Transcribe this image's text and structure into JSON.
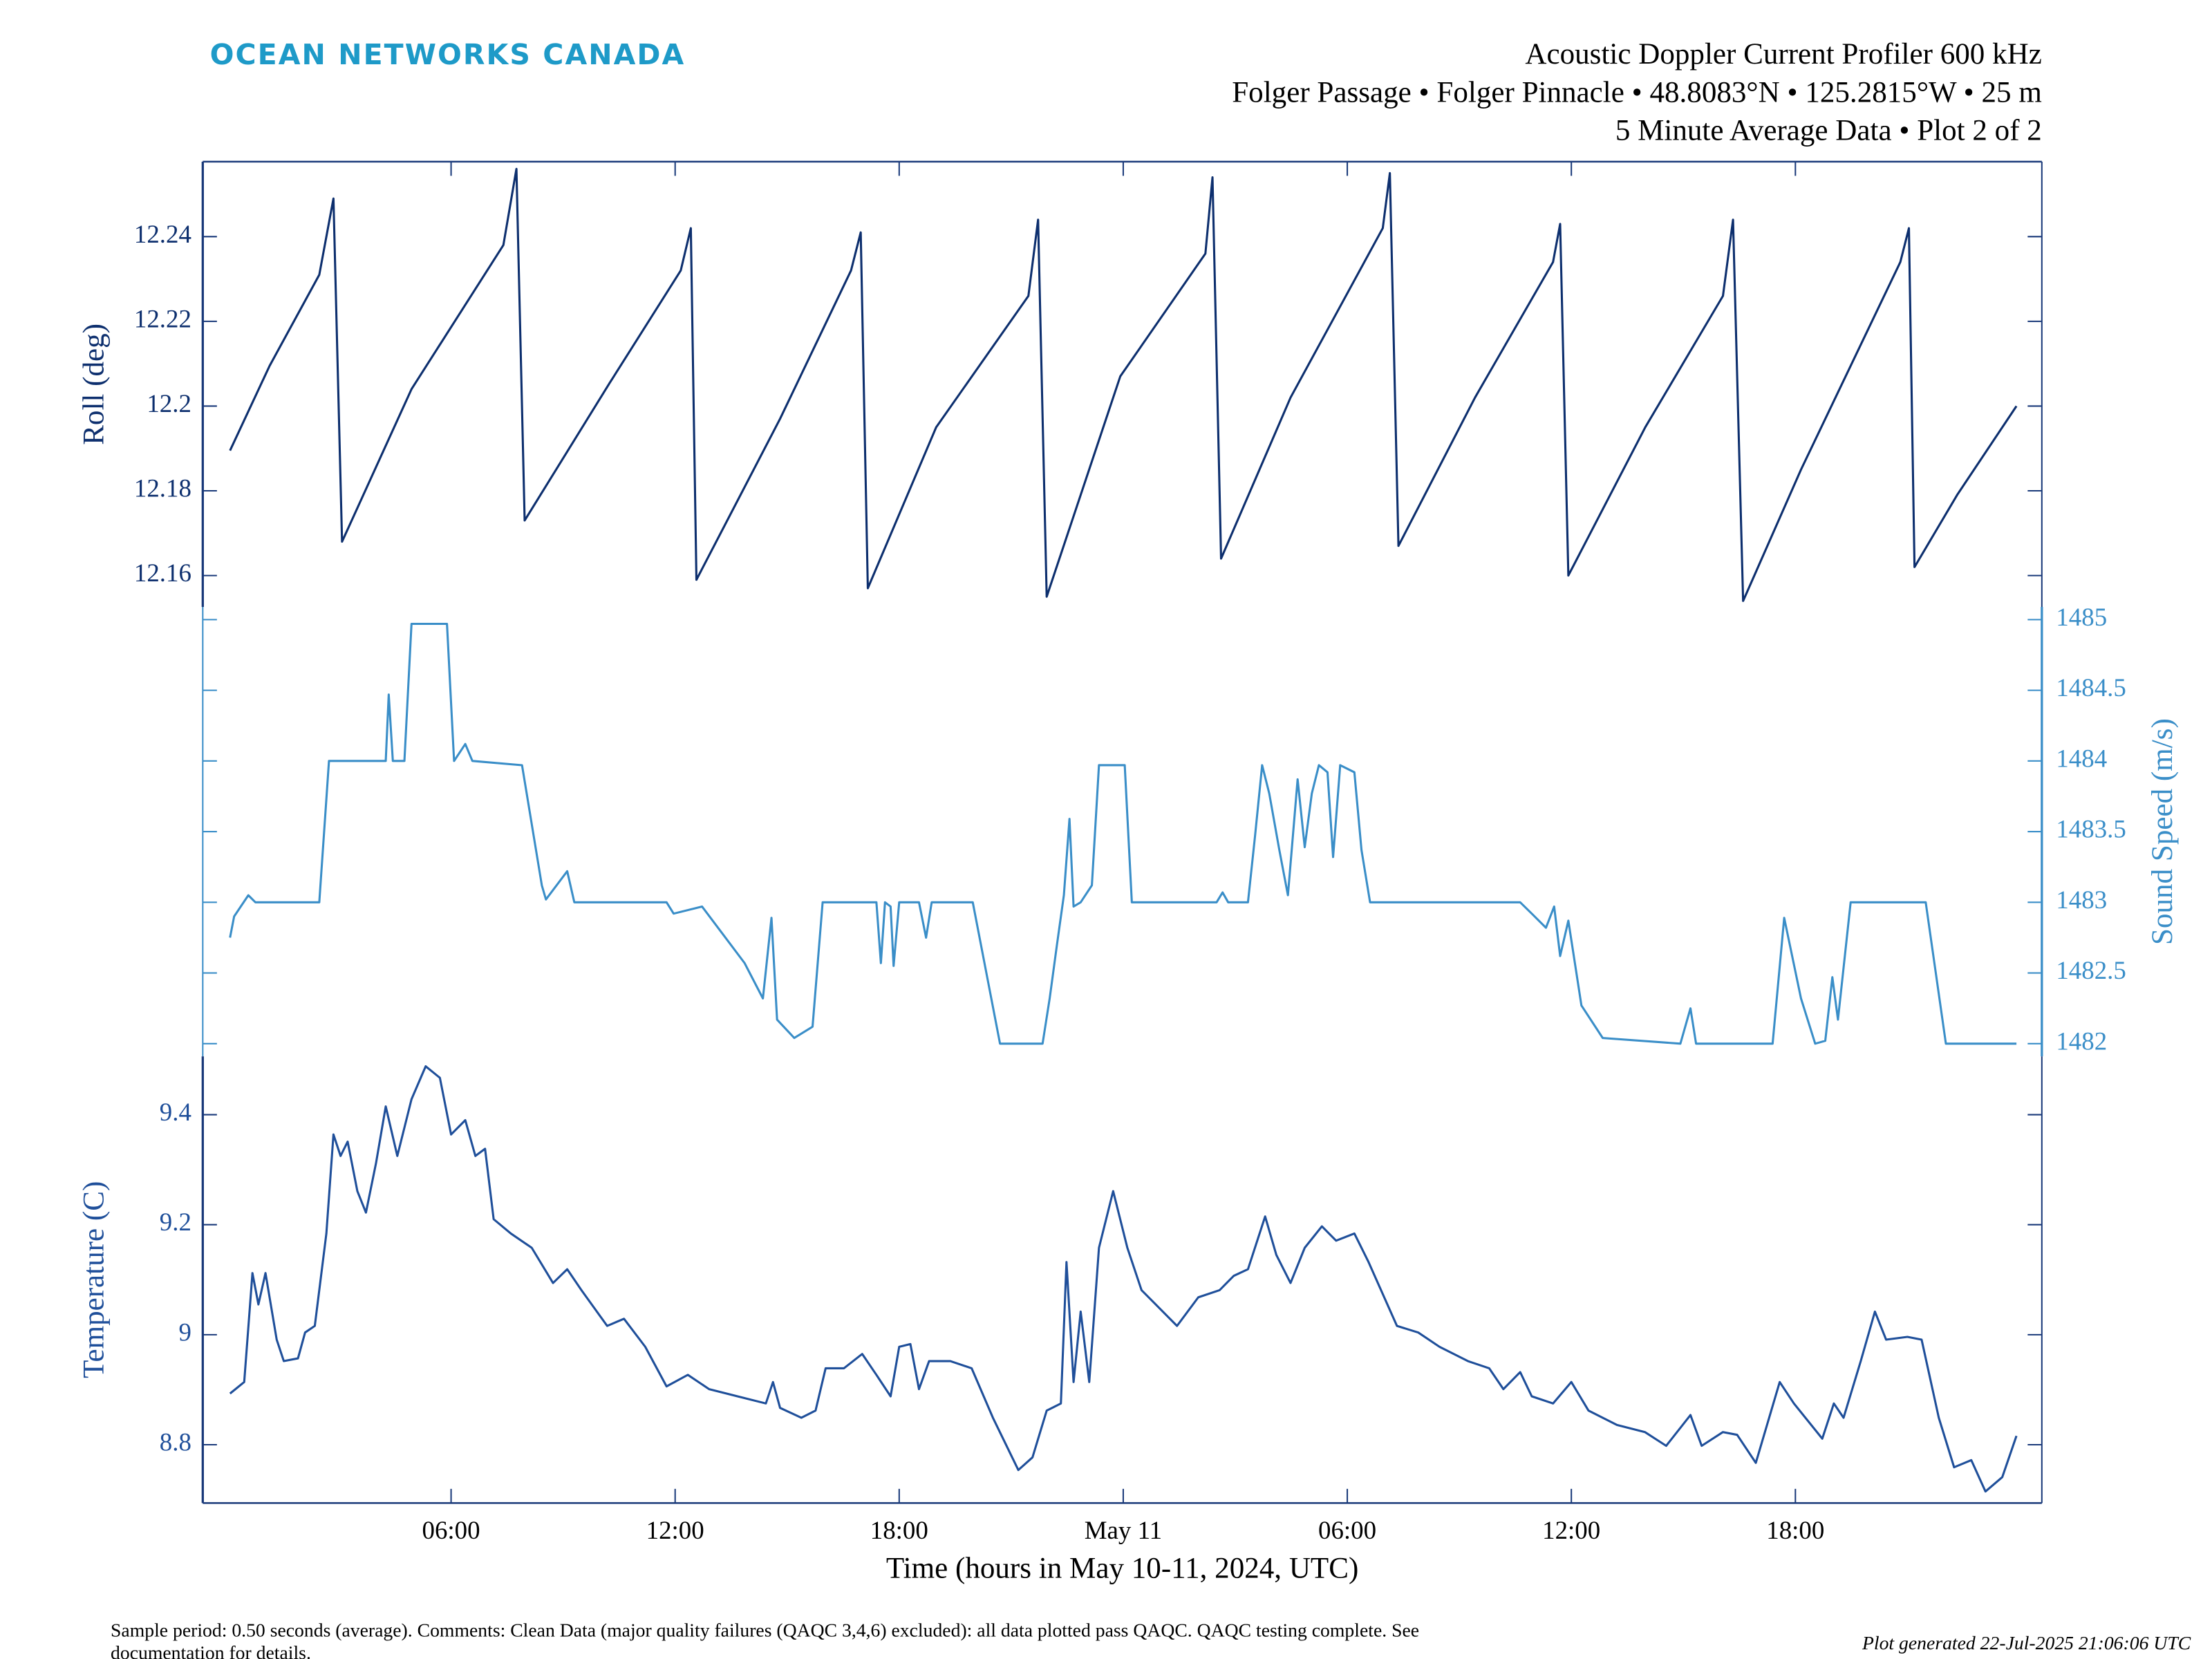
{
  "header": {
    "logo": "OCEAN NETWORKS CANADA",
    "title": [
      "Acoustic Doppler Current Profiler 600 kHz",
      "Folger Passage • Folger Pinnacle • 48.8083°N • 125.2815°W • 25 m",
      "5 Minute Average Data • Plot 2 of 2"
    ]
  },
  "chart_data": [
    {
      "type": "line",
      "ylabel": "Roll (deg)",
      "yaxis_side": "left",
      "color": "#0d2f6e",
      "ylim": [
        12.1526,
        12.2577
      ],
      "yticks": [
        12.16,
        12.18,
        12.2,
        12.22,
        12.24
      ],
      "x": [
        0.08,
        1.14,
        2.47,
        2.85,
        3.08,
        4.94,
        7.4,
        7.75,
        7.97,
        10.25,
        12.15,
        12.42,
        12.57,
        14.81,
        16.71,
        16.97,
        17.16,
        18.99,
        21.46,
        21.72,
        21.95,
        23.92,
        26.2,
        26.39,
        26.62,
        28.48,
        30.95,
        31.14,
        31.37,
        33.42,
        35.51,
        35.7,
        35.92,
        37.98,
        40.06,
        40.33,
        40.6,
        42.15,
        44.81,
        45.04,
        45.19,
        46.33,
        47.92
      ],
      "values": [
        12.1895,
        12.2095,
        12.231,
        12.249,
        12.168,
        12.204,
        12.238,
        12.256,
        12.173,
        12.2055,
        12.232,
        12.242,
        12.159,
        12.197,
        12.232,
        12.241,
        12.157,
        12.195,
        12.226,
        12.244,
        12.155,
        12.207,
        12.236,
        12.254,
        12.164,
        12.202,
        12.242,
        12.255,
        12.167,
        12.202,
        12.234,
        12.243,
        12.16,
        12.195,
        12.226,
        12.244,
        12.154,
        12.185,
        12.234,
        12.242,
        12.162,
        12.179,
        12.2
      ]
    },
    {
      "type": "line",
      "ylabel": "Sound Speed (m/s)",
      "yaxis_side": "right",
      "color": "#3a8ec8",
      "ylim": [
        1481.91,
        1485.09
      ],
      "yticks": [
        1482,
        1482.5,
        1483,
        1483.5,
        1484,
        1484.5,
        1485
      ],
      "x": [
        0.08,
        0.19,
        0.57,
        0.76,
        2.47,
        2.73,
        4.25,
        4.33,
        4.44,
        4.75,
        4.94,
        5.89,
        6.08,
        6.38,
        6.57,
        7.9,
        8.43,
        8.54,
        9.11,
        9.3,
        11.77,
        11.96,
        12.72,
        13.29,
        13.86,
        14.35,
        14.58,
        14.73,
        15.19,
        15.68,
        15.95,
        17.39,
        17.51,
        17.62,
        17.77,
        17.85,
        18.0,
        18.53,
        18.72,
        18.87,
        19.97,
        20.7,
        21.84,
        22.03,
        22.22,
        22.41,
        22.56,
        22.67,
        22.86,
        23.16,
        23.35,
        24.04,
        24.23,
        26.5,
        26.66,
        26.81,
        27.34,
        27.53,
        27.72,
        27.91,
        28.18,
        28.41,
        28.67,
        28.86,
        29.05,
        29.24,
        29.47,
        29.62,
        29.81,
        30.19,
        30.38,
        30.61,
        34.63,
        34.94,
        35.32,
        35.54,
        35.7,
        35.92,
        36.27,
        36.84,
        38.92,
        39.19,
        39.34,
        41.39,
        41.7,
        42.15,
        42.53,
        42.8,
        42.99,
        43.14,
        43.48,
        45.49,
        46.03,
        47.92
      ],
      "values": [
        1482.75,
        1482.9,
        1483.05,
        1483,
        1483,
        1484,
        1484,
        1484.47,
        1484,
        1484,
        1484.97,
        1484.97,
        1484,
        1484.12,
        1484,
        1483.97,
        1483.12,
        1483.02,
        1483.22,
        1483,
        1483,
        1482.92,
        1482.97,
        1482.77,
        1482.57,
        1482.32,
        1482.89,
        1482.17,
        1482.04,
        1482.12,
        1483,
        1483,
        1482.57,
        1483,
        1482.97,
        1482.55,
        1483,
        1483,
        1482.75,
        1483,
        1483,
        1482,
        1482,
        1482.32,
        1482.69,
        1483.05,
        1483.59,
        1482.97,
        1483,
        1483.12,
        1483.97,
        1483.97,
        1483,
        1483,
        1483.07,
        1483,
        1483,
        1483.47,
        1483.97,
        1483.77,
        1483.37,
        1483.05,
        1483.87,
        1483.39,
        1483.77,
        1483.97,
        1483.92,
        1483.32,
        1483.97,
        1483.92,
        1483.37,
        1483,
        1483,
        1482.92,
        1482.82,
        1482.97,
        1482.62,
        1482.87,
        1482.27,
        1482.04,
        1482,
        1482.25,
        1482,
        1482,
        1482.89,
        1482.32,
        1482,
        1482.02,
        1482.47,
        1482.17,
        1483,
        1483,
        1482,
        1482
      ]
    },
    {
      "type": "line",
      "ylabel": "Temperature (C)",
      "yaxis_side": "left",
      "color": "#1f4f9a",
      "ylim": [
        8.694,
        9.506
      ],
      "yticks": [
        8.8,
        9,
        9.2,
        9.4
      ],
      "xlabel": "Time (hours in May 10-11, 2024, UTC)",
      "xlim": [
        -0.65,
        48.6
      ],
      "xticks": [
        {
          "value": 6,
          "label": "06:00"
        },
        {
          "value": 12,
          "label": "12:00"
        },
        {
          "value": 18,
          "label": "18:00"
        },
        {
          "value": 24,
          "label": "May 11"
        },
        {
          "value": 30,
          "label": "06:00"
        },
        {
          "value": 36,
          "label": "12:00"
        },
        {
          "value": 42,
          "label": "18:00"
        }
      ],
      "x": [
        0.08,
        0.46,
        0.68,
        0.84,
        1.03,
        1.33,
        1.52,
        1.9,
        2.09,
        2.35,
        2.66,
        2.85,
        3.04,
        3.23,
        3.49,
        3.72,
        3.99,
        4.25,
        4.56,
        4.94,
        5.32,
        5.7,
        6.0,
        6.38,
        6.65,
        6.91,
        7.14,
        7.6,
        8.16,
        8.73,
        9.11,
        9.49,
        10.18,
        10.63,
        11.2,
        11.77,
        12.34,
        12.91,
        13.67,
        14.43,
        14.62,
        14.81,
        15.38,
        15.76,
        16.03,
        16.52,
        17.01,
        17.39,
        17.77,
        18.0,
        18.3,
        18.53,
        18.8,
        19.37,
        19.94,
        20.51,
        21.19,
        21.57,
        21.95,
        22.33,
        22.48,
        22.67,
        22.86,
        23.09,
        23.35,
        23.73,
        24.11,
        24.49,
        24.87,
        25.44,
        26.01,
        26.58,
        26.96,
        27.34,
        27.8,
        28.1,
        28.48,
        28.86,
        29.32,
        29.7,
        30.19,
        30.57,
        31.33,
        31.9,
        32.47,
        33.23,
        33.8,
        34.18,
        34.63,
        34.94,
        35.51,
        36.0,
        36.46,
        37.22,
        37.97,
        38.54,
        39.19,
        39.49,
        40.06,
        40.44,
        40.94,
        41.58,
        41.96,
        42.72,
        43.03,
        43.29,
        43.75,
        44.13,
        44.43,
        45.0,
        45.38,
        45.84,
        46.25,
        46.71,
        47.09,
        47.54,
        47.92
      ],
      "values": [
        8.893,
        8.914,
        9.112,
        9.055,
        9.112,
        8.991,
        8.952,
        8.957,
        9.004,
        9.016,
        9.184,
        9.364,
        9.325,
        9.351,
        9.261,
        9.222,
        9.312,
        9.415,
        9.325,
        9.428,
        9.488,
        9.467,
        9.364,
        9.39,
        9.325,
        9.338,
        9.21,
        9.184,
        9.158,
        9.094,
        9.119,
        9.081,
        9.016,
        9.029,
        8.978,
        8.906,
        8.927,
        8.901,
        8.888,
        8.875,
        8.914,
        8.867,
        8.849,
        8.862,
        8.939,
        8.939,
        8.965,
        8.927,
        8.888,
        8.978,
        8.983,
        8.901,
        8.952,
        8.952,
        8.939,
        8.849,
        8.754,
        8.777,
        8.862,
        8.875,
        9.132,
        8.914,
        9.042,
        8.914,
        9.158,
        9.261,
        9.158,
        9.081,
        9.055,
        9.016,
        9.068,
        9.081,
        9.107,
        9.119,
        9.215,
        9.145,
        9.094,
        9.158,
        9.197,
        9.171,
        9.184,
        9.132,
        9.016,
        9.004,
        8.978,
        8.952,
        8.939,
        8.901,
        8.932,
        8.888,
        8.875,
        8.914,
        8.862,
        8.836,
        8.823,
        8.798,
        8.854,
        8.798,
        8.823,
        8.818,
        8.767,
        8.914,
        8.875,
        8.811,
        8.875,
        8.849,
        8.952,
        9.042,
        8.991,
        8.996,
        8.991,
        8.849,
        8.759,
        8.772,
        8.715,
        8.741,
        8.816
      ]
    }
  ],
  "footer": {
    "note": [
      "Sample period: 0.50 seconds (average). Comments: Clean Data (major quality failures (QAQC 3,4,6) excluded): all data plotted pass QAQC. QAQC testing complete. See",
      "documentation for details."
    ],
    "generated": "Plot generated 22-Jul-2025 21:06:06 UTC"
  }
}
